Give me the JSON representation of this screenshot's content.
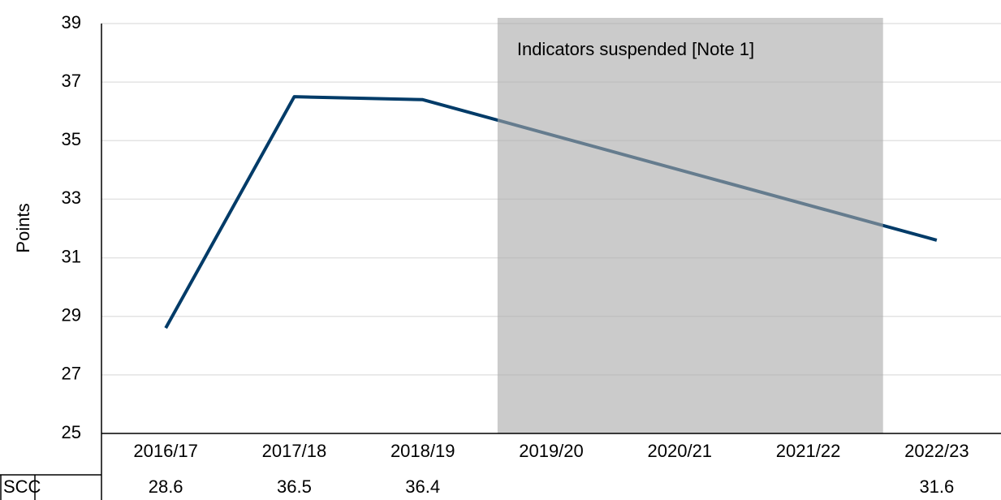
{
  "chart_data": {
    "type": "line",
    "y_label": "Points",
    "categories": [
      "2016/17",
      "2017/18",
      "2018/19",
      "2019/20",
      "2020/21",
      "2021/22",
      "2022/23"
    ],
    "series": [
      {
        "name": "SCC",
        "color": "#003b68",
        "values": [
          28.6,
          36.5,
          36.4,
          null,
          null,
          null,
          31.6
        ]
      }
    ],
    "span_gaps": true,
    "ylim": [
      25,
      39
    ],
    "yticks": [
      25,
      27,
      29,
      31,
      33,
      35,
      37,
      39
    ],
    "grid": true,
    "shaded_region": {
      "start": "2019/20",
      "end": "2021/22",
      "label": "Indicators suspended [Note 1]",
      "color": "#a9a9a9"
    },
    "data_table": true
  }
}
